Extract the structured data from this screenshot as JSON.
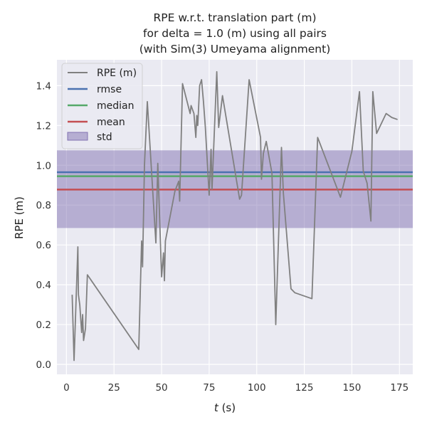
{
  "chart_data": {
    "type": "line",
    "title_lines": [
      "RPE w.r.t. translation part (m)",
      "for delta = 1.0 (m) using all pairs",
      "(with Sim(3) Umeyama alignment)"
    ],
    "xlabel_italic": "t",
    "xlabel_rest": " (s)",
    "ylabel": "RPE (m)",
    "xlim": [
      -5,
      182
    ],
    "ylim": [
      -0.05,
      1.53
    ],
    "x_ticks": [
      0,
      25,
      50,
      75,
      100,
      125,
      150,
      175
    ],
    "y_ticks": [
      0.0,
      0.2,
      0.4,
      0.6,
      0.8,
      1.0,
      1.2,
      1.4
    ],
    "x_tick_labels": [
      "0",
      "25",
      "50",
      "75",
      "100",
      "125",
      "150",
      "175"
    ],
    "y_tick_labels": [
      "0.0",
      "0.2",
      "0.4",
      "0.6",
      "0.8",
      "1.0",
      "1.2",
      "1.4"
    ],
    "grid": true,
    "legend_position": "upper-left",
    "series": [
      {
        "name": "RPE (m)",
        "color": "#808080",
        "points": [
          [
            3,
            0.35
          ],
          [
            4,
            0.02
          ],
          [
            6,
            0.59
          ],
          [
            6.3,
            0.35
          ],
          [
            7,
            0.3
          ],
          [
            8,
            0.16
          ],
          [
            8.5,
            0.25
          ],
          [
            9,
            0.12
          ],
          [
            10,
            0.18
          ],
          [
            11,
            0.45
          ],
          [
            38,
            0.075
          ],
          [
            39.5,
            0.62
          ],
          [
            40,
            0.49
          ],
          [
            41,
            1.0
          ],
          [
            42.5,
            1.32
          ],
          [
            47,
            0.61
          ],
          [
            48,
            1.01
          ],
          [
            50,
            0.44
          ],
          [
            51,
            0.56
          ],
          [
            51.5,
            0.42
          ],
          [
            52,
            0.62
          ],
          [
            57,
            0.87
          ],
          [
            59,
            0.92
          ],
          [
            59.5,
            0.82
          ],
          [
            61,
            1.41
          ],
          [
            65,
            1.26
          ],
          [
            65.5,
            1.3
          ],
          [
            67,
            1.26
          ],
          [
            68,
            1.14
          ],
          [
            68.5,
            1.25
          ],
          [
            69,
            1.2
          ],
          [
            70,
            1.4
          ],
          [
            71,
            1.43
          ],
          [
            72,
            1.32
          ],
          [
            73,
            1.19
          ],
          [
            75,
            0.85
          ],
          [
            76,
            1.08
          ],
          [
            76.5,
            0.88
          ],
          [
            79,
            1.47
          ],
          [
            80,
            1.19
          ],
          [
            82,
            1.35
          ],
          [
            91,
            0.83
          ],
          [
            92,
            0.85
          ],
          [
            96,
            1.43
          ],
          [
            102,
            1.14
          ],
          [
            102.5,
            0.93
          ],
          [
            103.5,
            1.06
          ],
          [
            105,
            1.12
          ],
          [
            108,
            0.96
          ],
          [
            110,
            0.2
          ],
          [
            113,
            1.09
          ],
          [
            114,
            0.86
          ],
          [
            118,
            0.38
          ],
          [
            120,
            0.36
          ],
          [
            129,
            0.33
          ],
          [
            132,
            1.14
          ],
          [
            144,
            0.84
          ],
          [
            150,
            1.07
          ],
          [
            154,
            1.37
          ],
          [
            156,
            0.97
          ],
          [
            158,
            0.91
          ],
          [
            160,
            0.72
          ],
          [
            161,
            1.37
          ],
          [
            163,
            1.16
          ],
          [
            168,
            1.26
          ],
          [
            171,
            1.24
          ],
          [
            174,
            1.23
          ]
        ]
      }
    ],
    "stats": [
      {
        "name": "rmse",
        "value": 0.965,
        "color": "#4c72b0"
      },
      {
        "name": "median",
        "value": 0.945,
        "color": "#55a868"
      },
      {
        "name": "mean",
        "value": 0.878,
        "color": "#c44e52"
      }
    ],
    "std_band": {
      "name": "std",
      "low": 0.685,
      "high": 1.075,
      "color": "#8172b2"
    },
    "colors": {
      "background": "#eaeaf2",
      "grid": "#ffffff"
    }
  }
}
